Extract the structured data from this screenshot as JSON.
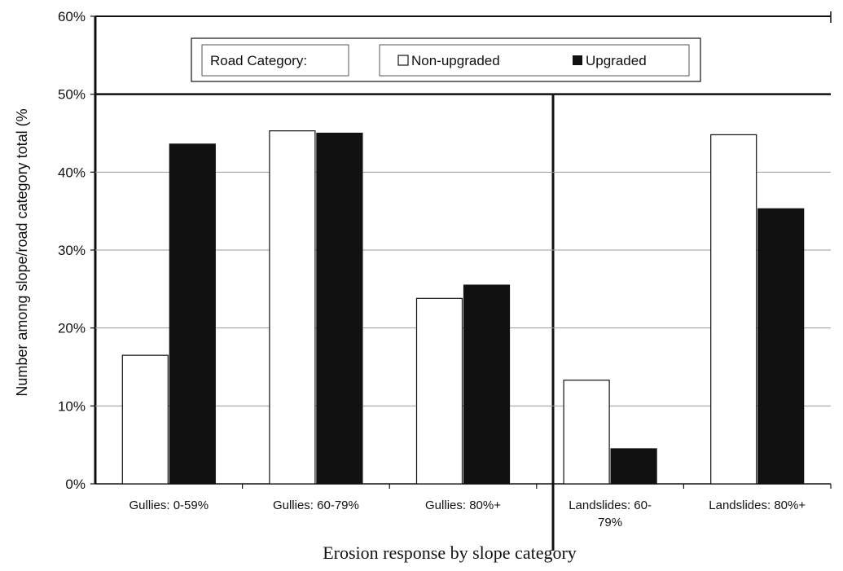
{
  "chart_data": {
    "type": "bar",
    "categories": [
      [
        "Gullies: 0-59%"
      ],
      [
        "Gullies: 60-79%"
      ],
      [
        "Gullies: 80%+"
      ],
      [
        "Landslides: 60-",
        "79%"
      ],
      [
        "Landslides: 80%+"
      ]
    ],
    "series": [
      {
        "name": "Non-upgraded",
        "values": [
          16.5,
          45.3,
          23.8,
          13.3,
          44.8
        ],
        "color": "#ffffff"
      },
      {
        "name": "Upgraded",
        "values": [
          43.6,
          45.0,
          25.5,
          4.5,
          35.3
        ],
        "color": "#111111"
      }
    ],
    "ylim": [
      0,
      60
    ],
    "yticks": [
      "0%",
      "10%",
      "20%",
      "30%",
      "40%",
      "50%",
      "60%"
    ],
    "ylabel": "Number among slope/road category total (%",
    "xlabel": "Erosion response by slope category",
    "legend": {
      "title": "Road Category:",
      "position": "top"
    },
    "grid": true
  }
}
